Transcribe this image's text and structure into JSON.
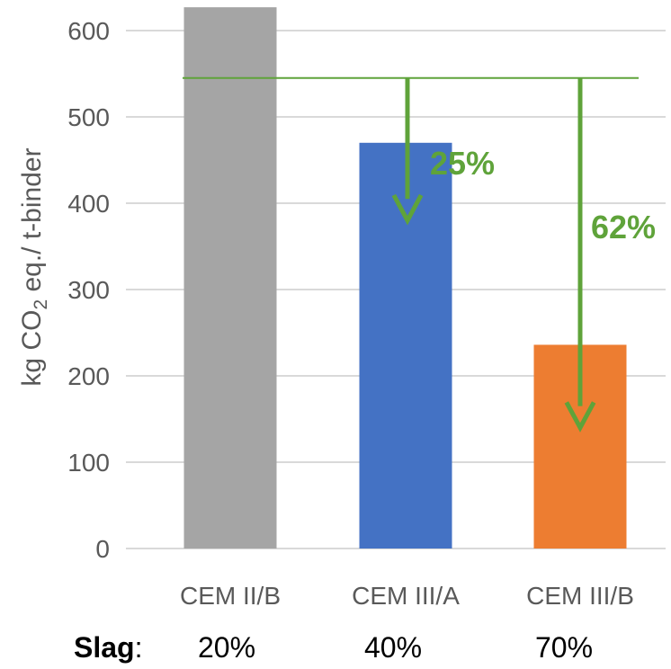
{
  "chart_data": {
    "type": "bar",
    "categories": [
      "CEM II/B",
      "CEM III/A",
      "CEM III/B"
    ],
    "values": [
      627,
      470,
      236
    ],
    "bar_colors": [
      "#A5A5A5",
      "#4472C4",
      "#ED7D31"
    ],
    "ylabel_main": "kg CO",
    "ylabel_sub": "2",
    "ylabel_rest": " eq./ t-binder",
    "ylim": [
      0,
      600
    ],
    "yticks": [
      0,
      100,
      200,
      300,
      400,
      500,
      600
    ],
    "grid": true,
    "reference_line": {
      "value": 545,
      "color": "#5FA33A"
    },
    "annotations": [
      {
        "target": "CEM III/A",
        "arrow_to": 380,
        "text": "25%"
      },
      {
        "target": "CEM III/B",
        "arrow_to": 140,
        "text": "62%"
      }
    ],
    "annotation_color": "#5FA33A"
  },
  "slag_row": {
    "label": "Slag",
    "separator": ":",
    "values": [
      "20%",
      "40%",
      "70%"
    ]
  }
}
